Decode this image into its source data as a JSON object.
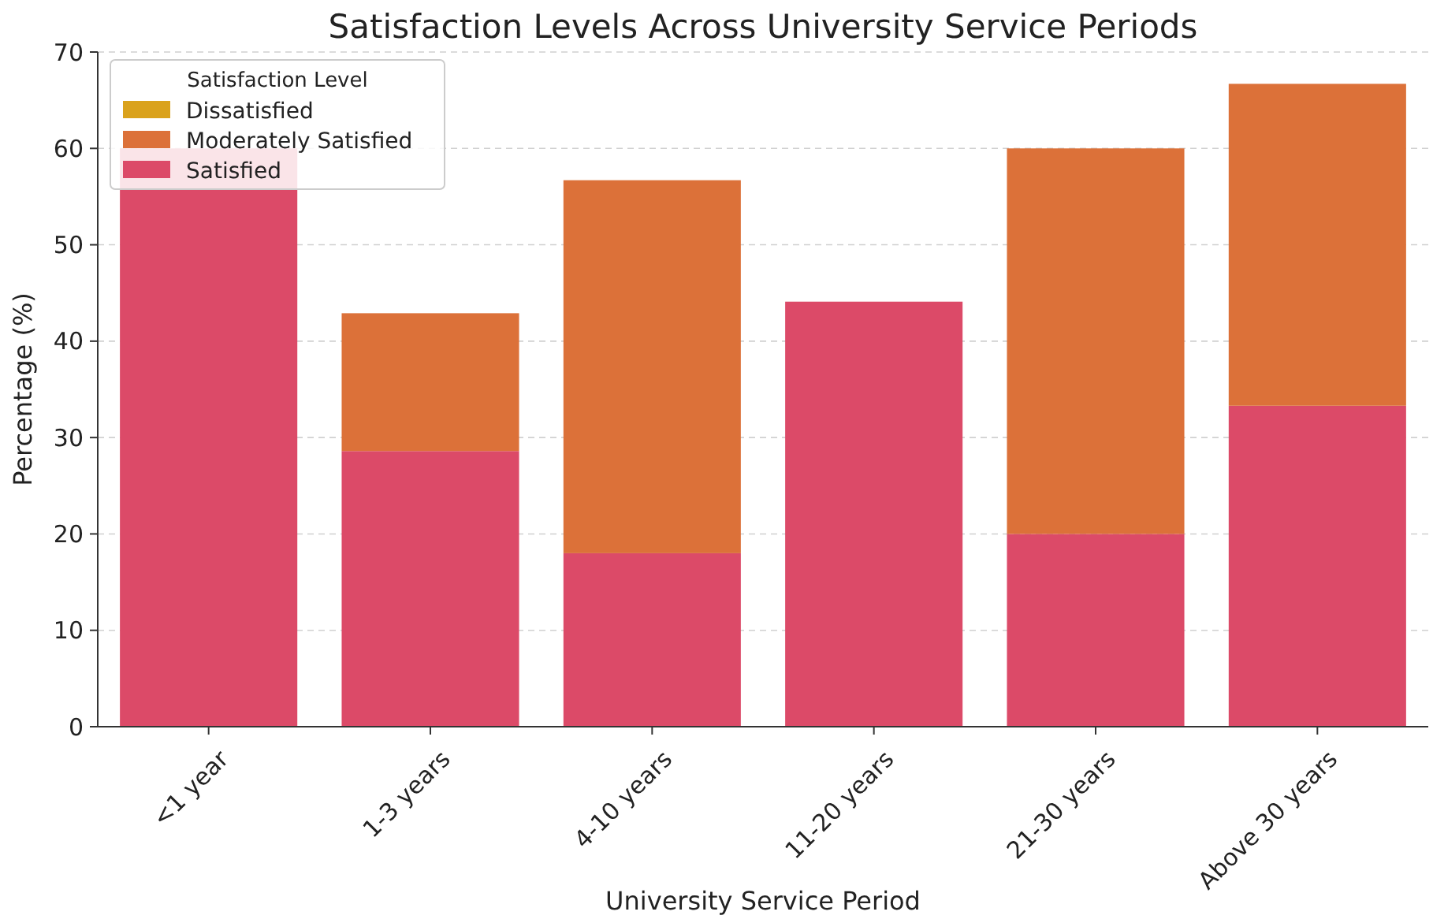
{
  "chart_data": {
    "type": "bar",
    "title": "Satisfaction Levels Across University Service Periods",
    "xlabel": "University Service Period",
    "ylabel": "Percentage (%)",
    "legend_title": "Satisfaction Level",
    "categories": [
      "<1 year",
      "1-3 years",
      "4-10 years",
      "11-20 years",
      "21-30 years",
      "Above 30 years"
    ],
    "stacked": true,
    "series": [
      {
        "name": "Satisfied",
        "color": "#dc4a68",
        "values": [
          60,
          28.6,
          18,
          44.1,
          20,
          33.3
        ]
      },
      {
        "name": "Moderately Satisfied",
        "color": "#dc7139",
        "values": [
          null,
          14.3,
          38.7,
          null,
          40,
          33.4
        ]
      },
      {
        "name": "Dissatisfied",
        "color": "#daa21c",
        "values": [
          null,
          null,
          null,
          null,
          null,
          null
        ]
      }
    ],
    "ylim": [
      0,
      70
    ],
    "yticks": [
      0,
      10,
      20,
      30,
      40,
      50,
      60,
      70
    ],
    "grid": "y",
    "legend": "top left"
  }
}
